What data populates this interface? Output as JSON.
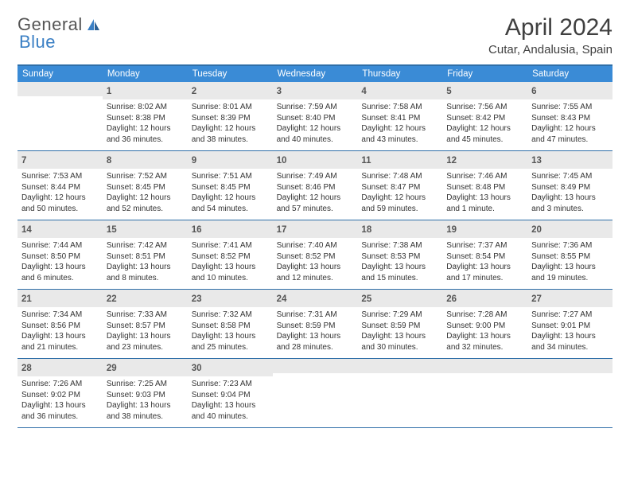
{
  "logo": {
    "part1": "General",
    "part2": "Blue"
  },
  "title": "April 2024",
  "location": "Cutar, Andalusia, Spain",
  "colors": {
    "header_bg": "#3a8bd6",
    "border": "#2f6fa8",
    "daynum_bg": "#e9e9e9",
    "logo_blue": "#3a7fc4"
  },
  "weekdays": [
    "Sunday",
    "Monday",
    "Tuesday",
    "Wednesday",
    "Thursday",
    "Friday",
    "Saturday"
  ],
  "weeks": [
    [
      null,
      {
        "n": "1",
        "sr": "8:02 AM",
        "ss": "8:38 PM",
        "dl": "12 hours and 36 minutes."
      },
      {
        "n": "2",
        "sr": "8:01 AM",
        "ss": "8:39 PM",
        "dl": "12 hours and 38 minutes."
      },
      {
        "n": "3",
        "sr": "7:59 AM",
        "ss": "8:40 PM",
        "dl": "12 hours and 40 minutes."
      },
      {
        "n": "4",
        "sr": "7:58 AM",
        "ss": "8:41 PM",
        "dl": "12 hours and 43 minutes."
      },
      {
        "n": "5",
        "sr": "7:56 AM",
        "ss": "8:42 PM",
        "dl": "12 hours and 45 minutes."
      },
      {
        "n": "6",
        "sr": "7:55 AM",
        "ss": "8:43 PM",
        "dl": "12 hours and 47 minutes."
      }
    ],
    [
      {
        "n": "7",
        "sr": "7:53 AM",
        "ss": "8:44 PM",
        "dl": "12 hours and 50 minutes."
      },
      {
        "n": "8",
        "sr": "7:52 AM",
        "ss": "8:45 PM",
        "dl": "12 hours and 52 minutes."
      },
      {
        "n": "9",
        "sr": "7:51 AM",
        "ss": "8:45 PM",
        "dl": "12 hours and 54 minutes."
      },
      {
        "n": "10",
        "sr": "7:49 AM",
        "ss": "8:46 PM",
        "dl": "12 hours and 57 minutes."
      },
      {
        "n": "11",
        "sr": "7:48 AM",
        "ss": "8:47 PM",
        "dl": "12 hours and 59 minutes."
      },
      {
        "n": "12",
        "sr": "7:46 AM",
        "ss": "8:48 PM",
        "dl": "13 hours and 1 minute."
      },
      {
        "n": "13",
        "sr": "7:45 AM",
        "ss": "8:49 PM",
        "dl": "13 hours and 3 minutes."
      }
    ],
    [
      {
        "n": "14",
        "sr": "7:44 AM",
        "ss": "8:50 PM",
        "dl": "13 hours and 6 minutes."
      },
      {
        "n": "15",
        "sr": "7:42 AM",
        "ss": "8:51 PM",
        "dl": "13 hours and 8 minutes."
      },
      {
        "n": "16",
        "sr": "7:41 AM",
        "ss": "8:52 PM",
        "dl": "13 hours and 10 minutes."
      },
      {
        "n": "17",
        "sr": "7:40 AM",
        "ss": "8:52 PM",
        "dl": "13 hours and 12 minutes."
      },
      {
        "n": "18",
        "sr": "7:38 AM",
        "ss": "8:53 PM",
        "dl": "13 hours and 15 minutes."
      },
      {
        "n": "19",
        "sr": "7:37 AM",
        "ss": "8:54 PM",
        "dl": "13 hours and 17 minutes."
      },
      {
        "n": "20",
        "sr": "7:36 AM",
        "ss": "8:55 PM",
        "dl": "13 hours and 19 minutes."
      }
    ],
    [
      {
        "n": "21",
        "sr": "7:34 AM",
        "ss": "8:56 PM",
        "dl": "13 hours and 21 minutes."
      },
      {
        "n": "22",
        "sr": "7:33 AM",
        "ss": "8:57 PM",
        "dl": "13 hours and 23 minutes."
      },
      {
        "n": "23",
        "sr": "7:32 AM",
        "ss": "8:58 PM",
        "dl": "13 hours and 25 minutes."
      },
      {
        "n": "24",
        "sr": "7:31 AM",
        "ss": "8:59 PM",
        "dl": "13 hours and 28 minutes."
      },
      {
        "n": "25",
        "sr": "7:29 AM",
        "ss": "8:59 PM",
        "dl": "13 hours and 30 minutes."
      },
      {
        "n": "26",
        "sr": "7:28 AM",
        "ss": "9:00 PM",
        "dl": "13 hours and 32 minutes."
      },
      {
        "n": "27",
        "sr": "7:27 AM",
        "ss": "9:01 PM",
        "dl": "13 hours and 34 minutes."
      }
    ],
    [
      {
        "n": "28",
        "sr": "7:26 AM",
        "ss": "9:02 PM",
        "dl": "13 hours and 36 minutes."
      },
      {
        "n": "29",
        "sr": "7:25 AM",
        "ss": "9:03 PM",
        "dl": "13 hours and 38 minutes."
      },
      {
        "n": "30",
        "sr": "7:23 AM",
        "ss": "9:04 PM",
        "dl": "13 hours and 40 minutes."
      },
      null,
      null,
      null,
      null
    ]
  ],
  "labels": {
    "sunrise": "Sunrise:",
    "sunset": "Sunset:",
    "daylight": "Daylight:"
  }
}
